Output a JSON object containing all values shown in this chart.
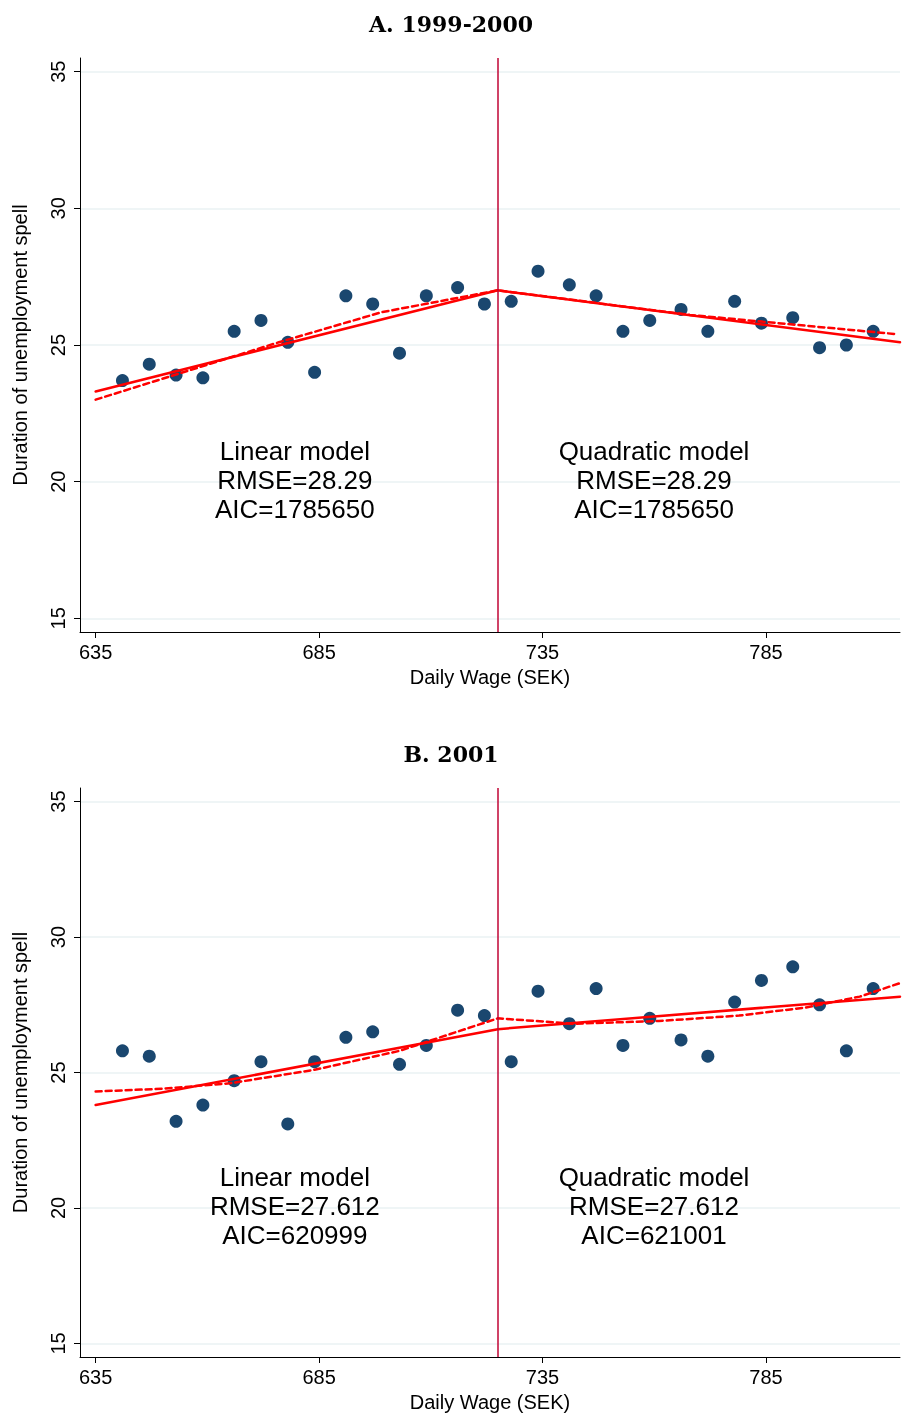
{
  "chart_data": [
    {
      "type": "scatter",
      "title": "A. 1999-2000",
      "xlabel": "Daily Wage (SEK)",
      "ylabel": "Duration of unemployment spell",
      "xlim": [
        631.5,
        815
      ],
      "xticks": [
        635,
        685,
        735,
        785
      ],
      "ylim": [
        14.5,
        35.5
      ],
      "yticks": [
        15,
        20,
        25,
        30,
        35
      ],
      "grid": "y",
      "annotations": [
        "Linear model\nRMSE=28.29\nAIC=1785650",
        "Quadratic model\nRMSE=28.29\nAIC=1785650"
      ],
      "ref_lines": [
        {
          "axis": "x",
          "value": 725,
          "color": "#c10534"
        }
      ],
      "series": [
        {
          "type": "scatter",
          "marker": "circle",
          "color": "#1a476f",
          "x": [
            641,
            647,
            653,
            659,
            666,
            672,
            678,
            684,
            691,
            697,
            703,
            709,
            716,
            722,
            728,
            734,
            741,
            747,
            753,
            759,
            766,
            772,
            778,
            784,
            791,
            797,
            803,
            809
          ],
          "values": [
            23.7,
            24.3,
            23.9,
            23.8,
            25.5,
            25.9,
            25.1,
            24.0,
            26.8,
            26.5,
            24.7,
            26.8,
            27.1,
            26.5,
            26.6,
            27.7,
            27.2,
            26.8,
            25.5,
            25.9,
            26.3,
            25.5,
            26.6,
            25.8,
            26.0,
            24.9,
            25.0,
            25.5
          ]
        },
        {
          "type": "line",
          "color": "#ff0000",
          "line_style": "solid",
          "x": [
            635,
            725,
            815
          ],
          "values": [
            23.3,
            27.0,
            25.1
          ]
        },
        {
          "type": "line",
          "color": "#ff0000",
          "line_style": "dashed",
          "x": [
            635,
            676,
            699,
            725,
            768,
            814
          ],
          "values": [
            23.0,
            25.1,
            26.2,
            27.0,
            26.1,
            25.4
          ]
        }
      ]
    },
    {
      "type": "scatter",
      "title": "B. 2001",
      "xlabel": "Daily Wage (SEK)",
      "ylabel": "Duration of unemployment spell",
      "xlim": [
        631.5,
        815
      ],
      "xticks": [
        635,
        685,
        735,
        785
      ],
      "ylim": [
        14.5,
        35.5
      ],
      "yticks": [
        15,
        20,
        25,
        30,
        35
      ],
      "grid": "y",
      "annotations": [
        "Linear model\nRMSE=27.612\nAIC=620999",
        "Quadratic model\nRMSE=27.612\nAIC=621001"
      ],
      "ref_lines": [
        {
          "axis": "x",
          "value": 725,
          "color": "#c10534"
        }
      ],
      "series": [
        {
          "type": "scatter",
          "marker": "circle",
          "color": "#1a476f",
          "x": [
            641,
            647,
            653,
            659,
            666,
            672,
            678,
            684,
            691,
            697,
            703,
            709,
            716,
            722,
            728,
            734,
            741,
            747,
            753,
            759,
            766,
            772,
            778,
            784,
            791,
            797,
            803,
            809
          ],
          "values": [
            25.8,
            25.6,
            23.2,
            23.8,
            24.7,
            25.4,
            23.1,
            25.4,
            26.3,
            26.5,
            25.3,
            26.0,
            27.3,
            27.1,
            25.4,
            28.0,
            26.8,
            28.1,
            26.0,
            27.0,
            26.2,
            25.6,
            27.6,
            28.4,
            28.9,
            27.5,
            25.8,
            28.1
          ]
        },
        {
          "type": "line",
          "color": "#ff0000",
          "line_style": "solid",
          "x": [
            635,
            725,
            815
          ],
          "values": [
            23.8,
            26.6,
            27.8
          ]
        },
        {
          "type": "line",
          "color": "#ff0000",
          "line_style": "dashed",
          "x": [
            635,
            650,
            665,
            684,
            703,
            714,
            725,
            742,
            761,
            779,
            794,
            806,
            815
          ],
          "values": [
            24.3,
            24.4,
            24.6,
            25.1,
            25.8,
            26.4,
            27.0,
            26.8,
            26.9,
            27.1,
            27.4,
            27.8,
            28.3
          ]
        }
      ]
    }
  ]
}
